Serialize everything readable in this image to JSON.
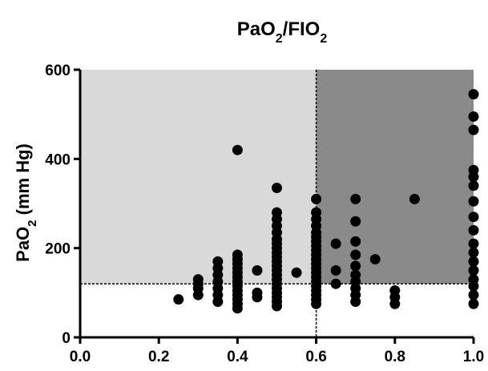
{
  "chart_data": {
    "type": "scatter",
    "title": {
      "main": "PaO",
      "sub1": "2",
      "mid": "/FIO",
      "sub2": "2"
    },
    "ylabel": {
      "main": "PaO",
      "sub": "2",
      "rest": " (mm Hg)"
    },
    "xlabel": "",
    "xlim": [
      0.0,
      1.0
    ],
    "ylim": [
      0,
      600
    ],
    "xticks": [
      0.0,
      0.2,
      0.4,
      0.6,
      0.8,
      1.0
    ],
    "xtick_labels": [
      "0.0",
      "0.2",
      "0.4",
      "0.6",
      "0.8",
      "1.0"
    ],
    "yticks": [
      0,
      200,
      400,
      600
    ],
    "ytick_labels": [
      "0",
      "200",
      "400",
      "600"
    ],
    "grid": false,
    "regions": [
      {
        "name": "light-region",
        "x": [
          0.0,
          0.6
        ],
        "y": [
          120,
          600
        ],
        "color": "#d9d9d9"
      },
      {
        "name": "dark-region",
        "x": [
          0.6,
          1.0
        ],
        "y": [
          120,
          600
        ],
        "color": "#8a8a8a"
      }
    ],
    "reference_lines": {
      "x": 0.6,
      "y": 120
    },
    "marker_color": "#000000",
    "points": [
      [
        0.25,
        85
      ],
      [
        0.3,
        95
      ],
      [
        0.3,
        110
      ],
      [
        0.3,
        120
      ],
      [
        0.3,
        130
      ],
      [
        0.35,
        80
      ],
      [
        0.35,
        95
      ],
      [
        0.35,
        110
      ],
      [
        0.35,
        125
      ],
      [
        0.35,
        140
      ],
      [
        0.35,
        155
      ],
      [
        0.35,
        170
      ],
      [
        0.4,
        65
      ],
      [
        0.4,
        75
      ],
      [
        0.4,
        85
      ],
      [
        0.4,
        95
      ],
      [
        0.4,
        105
      ],
      [
        0.4,
        115
      ],
      [
        0.4,
        125
      ],
      [
        0.4,
        135
      ],
      [
        0.4,
        145
      ],
      [
        0.4,
        155
      ],
      [
        0.4,
        165
      ],
      [
        0.4,
        175
      ],
      [
        0.4,
        185
      ],
      [
        0.4,
        420
      ],
      [
        0.45,
        90
      ],
      [
        0.45,
        100
      ],
      [
        0.45,
        150
      ],
      [
        0.5,
        70
      ],
      [
        0.5,
        80
      ],
      [
        0.5,
        90
      ],
      [
        0.5,
        100
      ],
      [
        0.5,
        110
      ],
      [
        0.5,
        120
      ],
      [
        0.5,
        130
      ],
      [
        0.5,
        140
      ],
      [
        0.5,
        150
      ],
      [
        0.5,
        160
      ],
      [
        0.5,
        170
      ],
      [
        0.5,
        180
      ],
      [
        0.5,
        190
      ],
      [
        0.5,
        200
      ],
      [
        0.5,
        210
      ],
      [
        0.5,
        220
      ],
      [
        0.5,
        235
      ],
      [
        0.5,
        250
      ],
      [
        0.5,
        265
      ],
      [
        0.5,
        280
      ],
      [
        0.5,
        335
      ],
      [
        0.55,
        145
      ],
      [
        0.6,
        75
      ],
      [
        0.6,
        85
      ],
      [
        0.6,
        95
      ],
      [
        0.6,
        105
      ],
      [
        0.6,
        115
      ],
      [
        0.6,
        125
      ],
      [
        0.6,
        135
      ],
      [
        0.6,
        145
      ],
      [
        0.6,
        155
      ],
      [
        0.6,
        165
      ],
      [
        0.6,
        175
      ],
      [
        0.6,
        185
      ],
      [
        0.6,
        195
      ],
      [
        0.6,
        205
      ],
      [
        0.6,
        215
      ],
      [
        0.6,
        225
      ],
      [
        0.6,
        235
      ],
      [
        0.6,
        250
      ],
      [
        0.6,
        265
      ],
      [
        0.6,
        280
      ],
      [
        0.6,
        310
      ],
      [
        0.65,
        120
      ],
      [
        0.65,
        150
      ],
      [
        0.65,
        210
      ],
      [
        0.7,
        80
      ],
      [
        0.7,
        95
      ],
      [
        0.7,
        110
      ],
      [
        0.7,
        125
      ],
      [
        0.7,
        140
      ],
      [
        0.7,
        160
      ],
      [
        0.7,
        185
      ],
      [
        0.7,
        215
      ],
      [
        0.7,
        260
      ],
      [
        0.7,
        310
      ],
      [
        0.75,
        175
      ],
      [
        0.8,
        75
      ],
      [
        0.8,
        90
      ],
      [
        0.8,
        105
      ],
      [
        0.85,
        310
      ],
      [
        1.0,
        75
      ],
      [
        1.0,
        95
      ],
      [
        1.0,
        115
      ],
      [
        1.0,
        130
      ],
      [
        1.0,
        150
      ],
      [
        1.0,
        170
      ],
      [
        1.0,
        190
      ],
      [
        1.0,
        210
      ],
      [
        1.0,
        240
      ],
      [
        1.0,
        270
      ],
      [
        1.0,
        305
      ],
      [
        1.0,
        340
      ],
      [
        1.0,
        360
      ],
      [
        1.0,
        375
      ],
      [
        1.0,
        465
      ],
      [
        1.0,
        495
      ],
      [
        1.0,
        545
      ]
    ]
  }
}
